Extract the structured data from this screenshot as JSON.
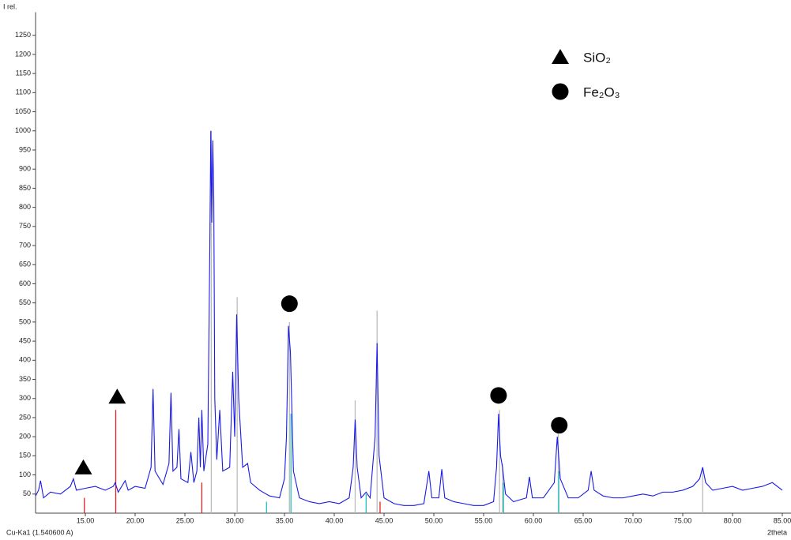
{
  "chart_data": {
    "type": "xrd",
    "ylabel": "I rel.",
    "xlabel": "2theta",
    "note": "Cu-Ka1 (1.540600 A)",
    "xlim": [
      10,
      85
    ],
    "ylim": [
      0,
      1300
    ],
    "xticks": [
      {
        "value": 15,
        "label": "15.00"
      },
      {
        "value": 20,
        "label": "20.00"
      },
      {
        "value": 25,
        "label": "25.00"
      },
      {
        "value": 30,
        "label": "30.00"
      },
      {
        "value": 35,
        "label": "35.00"
      },
      {
        "value": 40,
        "label": "40.00"
      },
      {
        "value": 45,
        "label": "45.00"
      },
      {
        "value": 50,
        "label": "50.00"
      },
      {
        "value": 55,
        "label": "55.00"
      },
      {
        "value": 60,
        "label": "60.00"
      },
      {
        "value": 65,
        "label": "65.00"
      },
      {
        "value": 70,
        "label": "70.00"
      },
      {
        "value": 75,
        "label": "75.00"
      },
      {
        "value": 80,
        "label": "80.00"
      },
      {
        "value": 85,
        "label": "85.00"
      }
    ],
    "yticks": [
      50,
      100,
      150,
      200,
      250,
      300,
      350,
      400,
      450,
      500,
      550,
      600,
      650,
      700,
      750,
      800,
      850,
      900,
      950,
      1000,
      1050,
      1100,
      1150,
      1200,
      1250
    ],
    "profile": {
      "color": "#1a1ae6",
      "x": [
        10,
        10.3,
        10.5,
        10.8,
        11.5,
        12.5,
        13.5,
        13.8,
        14.1,
        15,
        16,
        17,
        17.8,
        18.0,
        18.3,
        19.0,
        19.3,
        20,
        21,
        21.6,
        21.8,
        22.0,
        22.8,
        23.4,
        23.6,
        23.8,
        24.2,
        24.4,
        24.6,
        25.3,
        25.6,
        25.9,
        26.2,
        26.4,
        26.55,
        26.7,
        26.9,
        27.3,
        27.5,
        27.6,
        27.7,
        27.8,
        27.9,
        28.0,
        28.2,
        28.5,
        28.8,
        29.5,
        29.8,
        30.0,
        30.2,
        30.4,
        30.8,
        31.3,
        31.6,
        32.5,
        33.5,
        34.5,
        35.0,
        35.2,
        35.4,
        35.6,
        35.9,
        36.5,
        37.5,
        38.5,
        39.5,
        40.5,
        41.5,
        41.9,
        42.1,
        42.3,
        42.7,
        43.2,
        43.6,
        44.1,
        44.3,
        44.5,
        45.0,
        46,
        47,
        48,
        49,
        49.5,
        49.8,
        50.5,
        50.8,
        51.1,
        52,
        53,
        54,
        55,
        56,
        56.3,
        56.5,
        56.7,
        56.9,
        57.2,
        58,
        59.3,
        59.6,
        59.9,
        61,
        62.1,
        62.4,
        62.7,
        63.5,
        64.5,
        65.5,
        65.8,
        66.1,
        67,
        68,
        69,
        70,
        71,
        72,
        73,
        74,
        75,
        76,
        76.7,
        77.0,
        77.3,
        78,
        79,
        80,
        81,
        82,
        83,
        84,
        85
      ],
      "y": [
        45,
        60,
        85,
        40,
        55,
        50,
        70,
        90,
        60,
        65,
        70,
        60,
        70,
        80,
        55,
        85,
        60,
        70,
        65,
        120,
        325,
        110,
        75,
        130,
        315,
        110,
        120,
        220,
        90,
        80,
        160,
        80,
        110,
        250,
        120,
        270,
        110,
        180,
        690,
        1000,
        760,
        975,
        820,
        300,
        140,
        270,
        110,
        120,
        370,
        200,
        520,
        300,
        120,
        130,
        80,
        60,
        45,
        40,
        90,
        200,
        490,
        420,
        110,
        40,
        30,
        25,
        30,
        25,
        40,
        120,
        245,
        120,
        40,
        55,
        40,
        200,
        445,
        150,
        40,
        25,
        20,
        20,
        25,
        110,
        40,
        40,
        115,
        40,
        30,
        25,
        20,
        20,
        30,
        120,
        260,
        150,
        120,
        50,
        30,
        40,
        95,
        40,
        40,
        80,
        200,
        90,
        40,
        40,
        60,
        110,
        60,
        45,
        40,
        40,
        45,
        50,
        45,
        55,
        55,
        60,
        70,
        90,
        120,
        80,
        60,
        65,
        70,
        60,
        65,
        70,
        80,
        60
      ]
    },
    "sticks": [
      {
        "color": "#bbbbbb",
        "x": [
          27.65,
          30.25,
          35.5,
          42.1,
          44.3,
          56.6,
          56.9,
          62.5,
          77.0
        ],
        "values": [
          1000,
          565,
          500,
          295,
          530,
          270,
          130,
          210,
          120
        ]
      },
      {
        "color": "#e02020",
        "x": [
          14.9,
          18.05,
          26.7,
          44.6
        ],
        "values": [
          40,
          270,
          80,
          30
        ]
      },
      {
        "color": "#20c0c0",
        "x": [
          33.2,
          35.65,
          43.2,
          57.0,
          62.55
        ],
        "values": [
          30,
          260,
          50,
          80,
          110
        ]
      }
    ],
    "phases": [
      {
        "name": "SiO₂",
        "marker": "triangle",
        "color": "#000000",
        "x": [
          14.8,
          18.2
        ],
        "y": [
          120,
          305
        ]
      },
      {
        "name": "Fe₂O₃",
        "marker": "circle",
        "color": "#000000",
        "x": [
          35.5,
          56.5,
          62.6
        ],
        "y": [
          548,
          308,
          230
        ]
      }
    ]
  }
}
